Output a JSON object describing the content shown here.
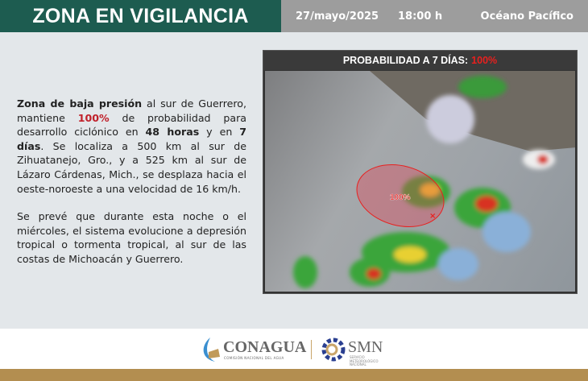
{
  "header": {
    "title": "ZONA EN VIGILANCIA",
    "date": "27/mayo/2025",
    "time": "18:00 h",
    "region": "Océano Pacífico"
  },
  "body": {
    "p1": [
      {
        "t": "Zona de baja presión",
        "b": true
      },
      {
        "t": " al sur de Guerrero, mantiene "
      },
      {
        "t": "100%",
        "r": true
      },
      {
        "t": " de probabilidad para desarrollo ciclónico en "
      },
      {
        "t": "48 horas",
        "b": true
      },
      {
        "t": " y en "
      },
      {
        "t": "7 días",
        "b": true
      },
      {
        "t": ". Se localiza a 500 km al sur de Zihuatanejo, Gro., y a 525 km al sur de Lázaro Cárdenas, Mich., se desplaza hacia el oeste-noroeste a una velocidad de 16 km/h."
      }
    ],
    "p2": "Se prevé que durante esta noche o el miércoles, el sistema evolucione a depresión tropical o tormenta tropical, al sur de las costas de Michoacán y Guerrero."
  },
  "panel": {
    "title": "PROBABILIDAD A 7 DÍAS:",
    "value": "100%",
    "zone_label": "100%",
    "colors": {
      "zone": "#e8201e"
    }
  },
  "footer": {
    "conagua": "CONAGUA",
    "conagua_sub": "COMISIÓN NACIONAL DEL AGUA",
    "smn": "SMN",
    "smn_sub": "SERVICIO METEOROLÓGICO NACIONAL"
  }
}
